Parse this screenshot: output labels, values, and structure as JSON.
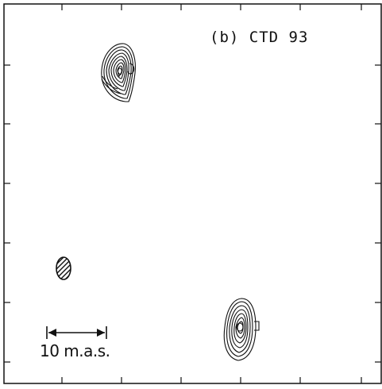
{
  "panel_label": "(b)  CTD 93",
  "scale_bar_label": "10 m.a.s.",
  "colors": {
    "background": "#ffffff",
    "ink": "#111111"
  },
  "components": [
    {
      "name": "north-component",
      "shape": "contour-map"
    },
    {
      "name": "south-component",
      "shape": "contour-map"
    }
  ],
  "beam": {
    "shape": "hatched-ellipse"
  }
}
